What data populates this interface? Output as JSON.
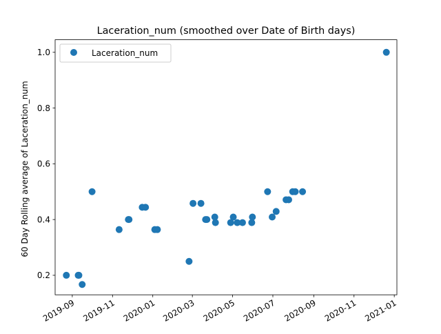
{
  "chart_data": {
    "type": "scatter",
    "title": "Laceration_num (smoothed over Date of Birth days)",
    "xlabel": "",
    "ylabel": "60 Day Rolling average of Laceration_num",
    "xlim": [
      "2019-08-06",
      "2021-01-05"
    ],
    "ylim": [
      0.13,
      1.045
    ],
    "x_ticks": [
      {
        "date": "2019-09-01",
        "label": "2019-09"
      },
      {
        "date": "2019-11-01",
        "label": "2019-11"
      },
      {
        "date": "2020-01-01",
        "label": "2020-01"
      },
      {
        "date": "2020-03-01",
        "label": "2020-03"
      },
      {
        "date": "2020-05-01",
        "label": "2020-05"
      },
      {
        "date": "2020-07-01",
        "label": "2020-07"
      },
      {
        "date": "2020-09-01",
        "label": "2020-09"
      },
      {
        "date": "2020-11-01",
        "label": "2020-11"
      },
      {
        "date": "2021-01-01",
        "label": "2021-01"
      }
    ],
    "y_ticks": [
      {
        "value": 0.2,
        "label": "0.2"
      },
      {
        "value": 0.4,
        "label": "0.4"
      },
      {
        "value": 0.6,
        "label": "0.6"
      },
      {
        "value": 0.8,
        "label": "0.8"
      },
      {
        "value": 1.0,
        "label": "1.0"
      }
    ],
    "legend": {
      "position": "top-left",
      "entries": [
        "Laceration_num"
      ]
    },
    "grid": false,
    "color": "#1f77b4",
    "series": [
      {
        "name": "Laceration_num",
        "points": [
          {
            "x": "2019-08-23",
            "y": 0.2
          },
          {
            "x": "2019-09-10",
            "y": 0.2
          },
          {
            "x": "2019-09-11",
            "y": 0.2
          },
          {
            "x": "2019-09-16",
            "y": 0.167
          },
          {
            "x": "2019-10-01",
            "y": 0.5
          },
          {
            "x": "2019-11-11",
            "y": 0.364
          },
          {
            "x": "2019-11-25",
            "y": 0.4
          },
          {
            "x": "2019-11-26",
            "y": 0.4
          },
          {
            "x": "2019-12-16",
            "y": 0.444
          },
          {
            "x": "2019-12-21",
            "y": 0.444
          },
          {
            "x": "2020-01-04",
            "y": 0.364
          },
          {
            "x": "2020-01-08",
            "y": 0.364
          },
          {
            "x": "2020-02-25",
            "y": 0.25
          },
          {
            "x": "2020-03-02",
            "y": 0.458
          },
          {
            "x": "2020-03-14",
            "y": 0.458
          },
          {
            "x": "2020-03-21",
            "y": 0.4
          },
          {
            "x": "2020-03-23",
            "y": 0.4
          },
          {
            "x": "2020-04-04",
            "y": 0.409
          },
          {
            "x": "2020-04-05",
            "y": 0.389
          },
          {
            "x": "2020-04-28",
            "y": 0.389
          },
          {
            "x": "2020-05-02",
            "y": 0.409
          },
          {
            "x": "2020-05-08",
            "y": 0.389
          },
          {
            "x": "2020-05-16",
            "y": 0.389
          },
          {
            "x": "2020-05-30",
            "y": 0.389
          },
          {
            "x": "2020-05-31",
            "y": 0.409
          },
          {
            "x": "2020-06-23",
            "y": 0.5
          },
          {
            "x": "2020-06-30",
            "y": 0.409
          },
          {
            "x": "2020-07-06",
            "y": 0.429
          },
          {
            "x": "2020-07-21",
            "y": 0.471
          },
          {
            "x": "2020-07-25",
            "y": 0.471
          },
          {
            "x": "2020-07-31",
            "y": 0.5
          },
          {
            "x": "2020-08-04",
            "y": 0.5
          },
          {
            "x": "2020-08-15",
            "y": 0.5
          },
          {
            "x": "2020-12-20",
            "y": 1.0
          }
        ]
      }
    ]
  }
}
